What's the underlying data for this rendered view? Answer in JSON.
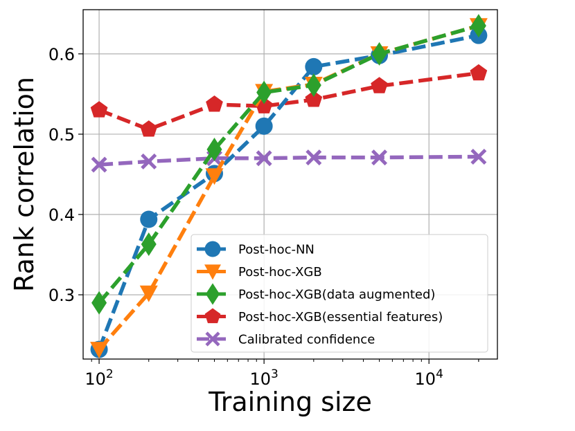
{
  "chart_data": {
    "type": "line",
    "title": "",
    "xlabel": "Training size",
    "ylabel": "Rank correlation",
    "xscale": "log",
    "x": [
      100,
      200,
      500,
      1000,
      2000,
      5000,
      20000
    ],
    "xlim": [
      80,
      26000
    ],
    "ylim": [
      0.22,
      0.655
    ],
    "xticks": [
      {
        "value": 100,
        "base": "10",
        "exp": "2"
      },
      {
        "value": 1000,
        "base": "10",
        "exp": "3"
      },
      {
        "value": 10000,
        "base": "10",
        "exp": "4"
      }
    ],
    "yticks": [
      {
        "value": 0.3,
        "label": "0.3"
      },
      {
        "value": 0.4,
        "label": "0.4"
      },
      {
        "value": 0.5,
        "label": "0.5"
      },
      {
        "value": 0.6,
        "label": "0.6"
      }
    ],
    "grid": true,
    "legend_position": "lower-right",
    "series": [
      {
        "name": "Post-hoc-NN",
        "color": "#1f77b4",
        "marker": "circle",
        "values": [
          0.232,
          0.394,
          0.451,
          0.51,
          0.584,
          0.598,
          0.623
        ]
      },
      {
        "name": "Post-hoc-XGB",
        "color": "#ff7f0e",
        "marker": "triangle-down",
        "values": [
          0.232,
          0.302,
          0.448,
          0.553,
          0.562,
          0.6,
          0.635
        ]
      },
      {
        "name": "Post-hoc-XGB(data augmented)",
        "color": "#2ca02c",
        "marker": "diamond",
        "values": [
          0.29,
          0.363,
          0.481,
          0.552,
          0.561,
          0.6,
          0.635
        ]
      },
      {
        "name": "Post-hoc-XGB(essential features)",
        "color": "#d62728",
        "marker": "pentagon",
        "values": [
          0.53,
          0.506,
          0.537,
          0.535,
          0.543,
          0.56,
          0.576
        ]
      },
      {
        "name": "Calibrated confidence",
        "color": "#9467bd",
        "marker": "x",
        "values": [
          0.462,
          0.466,
          0.47,
          0.47,
          0.471,
          0.471,
          0.472
        ]
      }
    ]
  }
}
